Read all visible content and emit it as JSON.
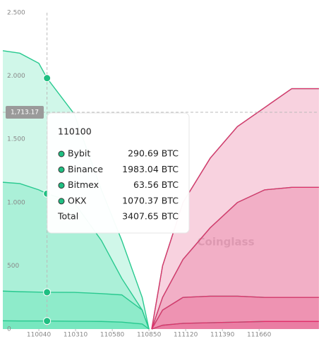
{
  "chart_data": {
    "type": "depth",
    "ylim": [
      0,
      2500
    ],
    "yticks": [
      0,
      500,
      {
        "value": 1000,
        "label": "1.000"
      },
      {
        "value": 1500,
        "label": "1.500"
      },
      {
        "value": 2000,
        "label": "2.000"
      },
      {
        "value": 2500,
        "label": "2.500"
      }
    ],
    "xlim": [
      109775,
      112100
    ],
    "xticks": [
      110040,
      110310,
      110580,
      110850,
      111120,
      111390,
      111660
    ],
    "colors": {
      "bids": "#2bd99b",
      "asks": "#e0336c"
    },
    "x": [
      109775,
      109900,
      110040,
      110100,
      110300,
      110500,
      110650,
      110800,
      110850,
      110860,
      110870,
      110950,
      111100,
      111300,
      111500,
      111700,
      111900,
      112100
    ],
    "series": [
      {
        "name": "Binance",
        "values": [
          2200,
          2180,
          2100,
          1983.04,
          1700,
          1100,
          700,
          250,
          0,
          null,
          0,
          500,
          1000,
          1350,
          1600,
          1750,
          1900,
          1900
        ]
      },
      {
        "name": "OKX",
        "values": [
          1160,
          1150,
          1100,
          1070.37,
          1000,
          700,
          400,
          150,
          0,
          null,
          0,
          250,
          550,
          800,
          1000,
          1100,
          1120,
          1120
        ]
      },
      {
        "name": "Bybit",
        "values": [
          300,
          295,
          292,
          290.69,
          290,
          280,
          270,
          150,
          0,
          null,
          0,
          150,
          250,
          260,
          260,
          250,
          250,
          250
        ]
      },
      {
        "name": "Bitmex",
        "values": [
          65,
          64,
          64,
          63.56,
          62,
          60,
          55,
          40,
          0,
          null,
          0,
          30,
          45,
          50,
          55,
          60,
          60,
          60
        ]
      }
    ],
    "crosshair": {
      "x": 110100,
      "y": 1713.17,
      "y_label": "1,713.17"
    },
    "watermark": "Coinglass",
    "tooltip": {
      "title": "110100",
      "rows": [
        {
          "name": "Bybit",
          "value": 290.69,
          "value_label": "290.69 BTC"
        },
        {
          "name": "Binance",
          "value": 1983.04,
          "value_label": "1983.04 BTC"
        },
        {
          "name": "Bitmex",
          "value": 63.56,
          "value_label": "63.56 BTC"
        },
        {
          "name": "OKX",
          "value": 1070.37,
          "value_label": "1070.37 BTC"
        }
      ],
      "total_label": "Total",
      "total": 3407.65,
      "total_value_label": "3407.65 BTC"
    }
  }
}
